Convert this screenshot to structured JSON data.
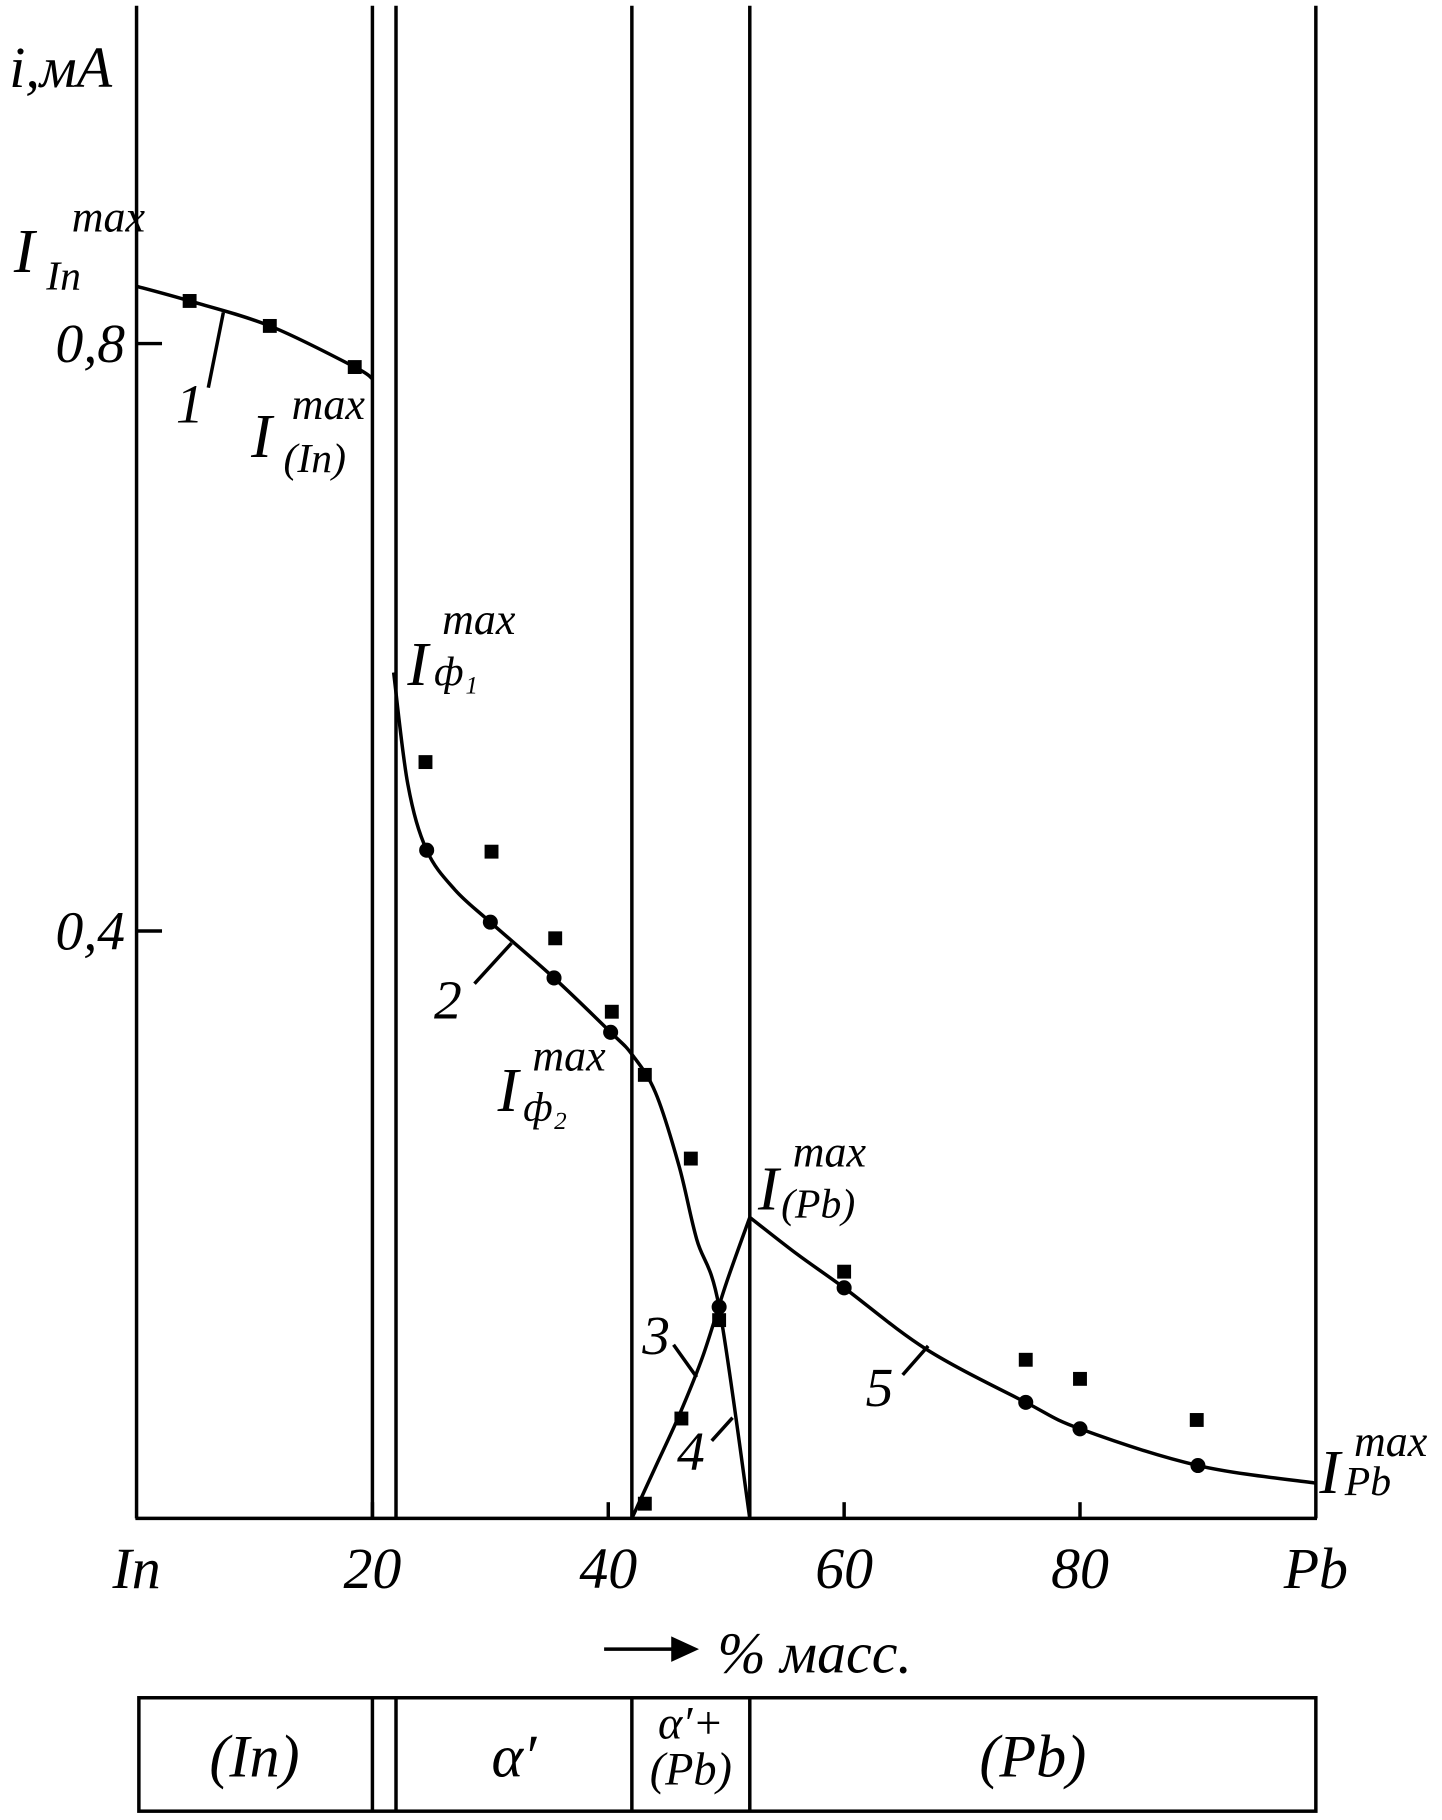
{
  "chart_data": {
    "type": "line",
    "y_label": "i,мА",
    "x_label": "% масс.",
    "xlim": [
      0,
      100
    ],
    "ylim": [
      0,
      1.03
    ],
    "xticks": [
      {
        "value": 0,
        "label": "In"
      },
      20,
      40,
      60,
      80,
      {
        "value": 100,
        "label": "Pb"
      }
    ],
    "yticks": [
      {
        "value": 0.4,
        "label": "0,4"
      },
      {
        "value": 0.8,
        "label": "0,8"
      }
    ],
    "color": "#000000",
    "series": [
      {
        "name": "1",
        "kind": "curve",
        "x": [
          0,
          4.5,
          11.3,
          18.5,
          20
        ],
        "values": [
          0.839,
          0.829,
          0.812,
          0.784,
          0.776
        ]
      },
      {
        "name": "2",
        "kind": "curve",
        "x": [
          21.8,
          23,
          24.6,
          27,
          30,
          35.4,
          40.2,
          42,
          44,
          46,
          47.5,
          49.4,
          52
        ],
        "values": [
          0.576,
          0.5,
          0.455,
          0.428,
          0.406,
          0.368,
          0.331,
          0.316,
          0.29,
          0.24,
          0.19,
          0.144,
          0
        ]
      },
      {
        "name": "3",
        "kind": "curve",
        "x": [
          42,
          44,
          46,
          48,
          50,
          52
        ],
        "values": [
          0,
          0.035,
          0.07,
          0.11,
          0.16,
          0.205
        ]
      },
      {
        "name": "5",
        "kind": "curve",
        "x": [
          52,
          56,
          60,
          67,
          75.4,
          80,
          90,
          100
        ],
        "values": [
          0.205,
          0.18,
          0.157,
          0.115,
          0.079,
          0.061,
          0.036,
          0.024
        ]
      },
      {
        "kind": "squares",
        "x": [
          4.5,
          11.3,
          18.5,
          24.5,
          30.1,
          35.5,
          40.3,
          43.1,
          47.0,
          49.4,
          46.2,
          43.1,
          60.0,
          75.4,
          80.0,
          89.9
        ],
        "values": [
          0.829,
          0.812,
          0.784,
          0.515,
          0.454,
          0.395,
          0.345,
          0.302,
          0.245,
          0.135,
          0.068,
          0.01,
          0.168,
          0.108,
          0.095,
          0.067
        ]
      },
      {
        "kind": "circles",
        "x": [
          24.6,
          30.0,
          35.4,
          40.2,
          49.4,
          60.0,
          75.4,
          80.0,
          90.0
        ],
        "values": [
          0.455,
          0.406,
          0.368,
          0.331,
          0.144,
          0.157,
          0.079,
          0.061,
          0.036
        ]
      }
    ],
    "curve_label_4": "4",
    "annotations": [
      {
        "main": "I",
        "sup": "max",
        "sub": "In"
      },
      {
        "main": "I",
        "sup": "max",
        "sub": "(In)"
      },
      {
        "main": "I",
        "sup": "max",
        "sub": "ф₁"
      },
      {
        "main": "I",
        "sup": "max",
        "sub": "ф₂"
      },
      {
        "main": "I",
        "sup": "max",
        "sub": "(Pb)"
      },
      {
        "main": "I",
        "sup": "max",
        "sub": "Pb"
      }
    ],
    "phase_boundaries": [
      20,
      22,
      42,
      52
    ],
    "phases": [
      {
        "label": [
          "(In)"
        ],
        "from": 0,
        "to": 20
      },
      {
        "label": [
          "α′"
        ],
        "from": 22,
        "to": 42
      },
      {
        "label": [
          "α′+",
          "(Pb)"
        ],
        "from": 42,
        "to": 52
      },
      {
        "label": [
          "(Pb)"
        ],
        "from": 52,
        "to": 100
      }
    ]
  }
}
